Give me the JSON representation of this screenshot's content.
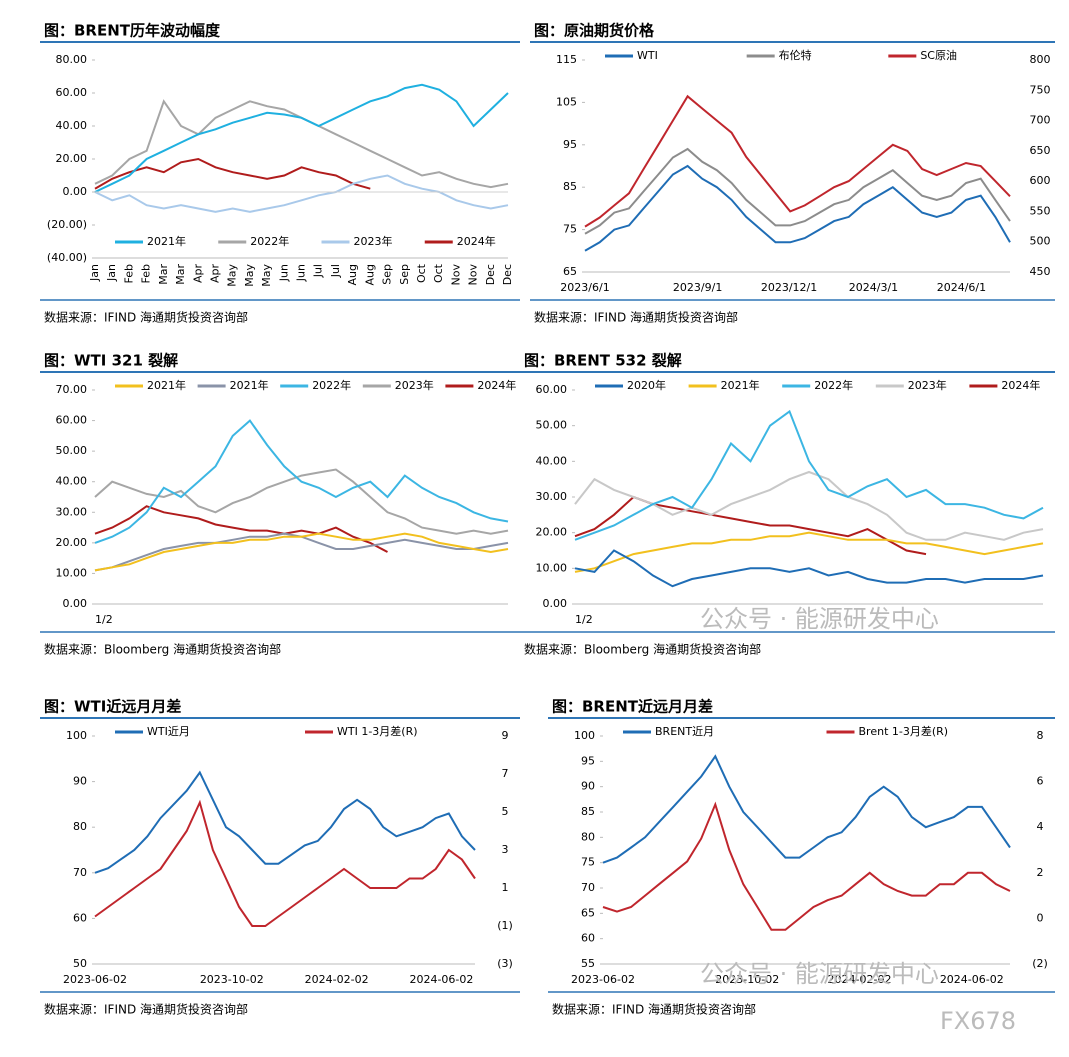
{
  "chart_data": [
    {
      "type": "line",
      "title": "图：BRENT历年波动幅度",
      "source": "数据来源：IFIND   海通期货投资咨询部",
      "legend": "bottom",
      "categories": [
        "Jan",
        "Jan",
        "Feb",
        "Feb",
        "Mar",
        "Mar",
        "Apr",
        "Apr",
        "May",
        "May",
        "May",
        "Jun",
        "Jun",
        "Jul",
        "Jul",
        "Aug",
        "Aug",
        "Sep",
        "Sep",
        "Oct",
        "Oct",
        "Nov",
        "Nov",
        "Dec",
        "Dec"
      ],
      "ylim": [
        -40,
        80
      ],
      "yticks": [
        {
          "value": -40,
          "label": "(40.00)"
        },
        {
          "value": -20,
          "label": "(20.00)"
        },
        {
          "value": 0,
          "label": "0.00"
        },
        {
          "value": 20,
          "label": "20.00"
        },
        {
          "value": 40,
          "label": "40.00"
        },
        {
          "value": 60,
          "label": "60.00"
        },
        {
          "value": 80,
          "label": "80.00"
        }
      ],
      "series": [
        {
          "name": "2021年",
          "color": "#1fb0e0",
          "values": [
            0,
            5,
            10,
            20,
            25,
            30,
            35,
            38,
            42,
            45,
            48,
            47,
            45,
            40,
            45,
            50,
            55,
            58,
            63,
            65,
            62,
            55,
            40,
            50,
            60
          ]
        },
        {
          "name": "2022年",
          "color": "#a6a6a6",
          "values": [
            5,
            10,
            20,
            25,
            55,
            40,
            35,
            45,
            50,
            55,
            52,
            50,
            45,
            40,
            35,
            30,
            25,
            20,
            15,
            10,
            12,
            8,
            5,
            3,
            5
          ]
        },
        {
          "name": "2023年",
          "color": "#a9c9ea",
          "values": [
            0,
            -5,
            -2,
            -8,
            -10,
            -8,
            -10,
            -12,
            -10,
            -12,
            -10,
            -8,
            -5,
            -2,
            0,
            5,
            8,
            10,
            5,
            2,
            0,
            -5,
            -8,
            -10,
            -8
          ]
        },
        {
          "name": "2024年",
          "color": "#b01c1c",
          "values": [
            2,
            8,
            12,
            15,
            12,
            18,
            20,
            15,
            12,
            10,
            8,
            10,
            15,
            12,
            10,
            5,
            2,
            null,
            null,
            null,
            null,
            null,
            null,
            null,
            null
          ]
        }
      ]
    },
    {
      "type": "line",
      "title": "图：原油期货价格",
      "source": "数据来源：IFIND   海通期货投资咨询部",
      "legend": "top",
      "categories": [
        "2023/6/1",
        null,
        null,
        null,
        null,
        null,
        "2023/9/1",
        null,
        null,
        null,
        null,
        null,
        "2023/12/1",
        null,
        null,
        null,
        null,
        null,
        "2024/3/1",
        null,
        null,
        null,
        null,
        null,
        "2024/6/1",
        null,
        null,
        null,
        null,
        null
      ],
      "ylim": [
        65,
        115
      ],
      "yticks": [
        65,
        75,
        85,
        95,
        105,
        115
      ],
      "y2lim": [
        450,
        800
      ],
      "y2ticks": [
        450,
        500,
        550,
        600,
        650,
        700,
        750,
        800
      ],
      "series": [
        {
          "name": "WTI",
          "color": "#1f6db5",
          "values": [
            70,
            72,
            75,
            76,
            80,
            84,
            88,
            90,
            87,
            85,
            82,
            78,
            75,
            72,
            72,
            73,
            75,
            77,
            78,
            81,
            83,
            85,
            82,
            79,
            78,
            79,
            82,
            83,
            78,
            72
          ]
        },
        {
          "name": "布伦特",
          "color": "#8c8c8c",
          "values": [
            74,
            76,
            79,
            80,
            84,
            88,
            92,
            94,
            91,
            89,
            86,
            82,
            79,
            76,
            76,
            77,
            79,
            81,
            82,
            85,
            87,
            89,
            86,
            83,
            82,
            83,
            86,
            87,
            82,
            77
          ]
        },
        {
          "name": "SC原油",
          "color": "#c0262d",
          "axis": "y2",
          "values": [
            525,
            540,
            560,
            580,
            620,
            660,
            700,
            740,
            720,
            700,
            680,
            640,
            610,
            580,
            550,
            560,
            575,
            590,
            600,
            620,
            640,
            660,
            650,
            620,
            610,
            620,
            630,
            625,
            600,
            575
          ]
        }
      ]
    },
    {
      "type": "line",
      "title": "图：WTI 321 裂解",
      "source": "数据来源：Bloomberg   海通期货投资咨询部",
      "legend": "top",
      "categories": [
        "1/2",
        null,
        null,
        null,
        null,
        null,
        null,
        null,
        null,
        null,
        null,
        null,
        null,
        null,
        null,
        null,
        null,
        null,
        null,
        null,
        null,
        null,
        null,
        null,
        null
      ],
      "ylim": [
        0,
        70
      ],
      "yticks": [
        {
          "value": 0,
          "label": "0.00"
        },
        {
          "value": 10,
          "label": "10.00"
        },
        {
          "value": 20,
          "label": "20.00"
        },
        {
          "value": 30,
          "label": "30.00"
        },
        {
          "value": 40,
          "label": "40.00"
        },
        {
          "value": 50,
          "label": "50.00"
        },
        {
          "value": 60,
          "label": "60.00"
        },
        {
          "value": 70,
          "label": "70.00"
        }
      ],
      "series": [
        {
          "name": "2021年",
          "color": "#f2c01e",
          "values": [
            11,
            12,
            13,
            15,
            17,
            18,
            19,
            20,
            20,
            21,
            21,
            22,
            22,
            23,
            22,
            21,
            21,
            22,
            23,
            22,
            20,
            19,
            18,
            17,
            18
          ]
        },
        {
          "name": "2021年",
          "color": "#8a93a8",
          "values": [
            11,
            12,
            14,
            16,
            18,
            19,
            20,
            20,
            21,
            22,
            22,
            23,
            22,
            20,
            18,
            18,
            19,
            20,
            21,
            20,
            19,
            18,
            18,
            19,
            20
          ]
        },
        {
          "name": "2022年",
          "color": "#3cb6e3",
          "values": [
            20,
            22,
            25,
            30,
            38,
            35,
            40,
            45,
            55,
            60,
            52,
            45,
            40,
            38,
            35,
            38,
            40,
            35,
            42,
            38,
            35,
            33,
            30,
            28,
            27
          ]
        },
        {
          "name": "2023年",
          "color": "#a6a6a6",
          "values": [
            35,
            40,
            38,
            36,
            35,
            37,
            32,
            30,
            33,
            35,
            38,
            40,
            42,
            43,
            44,
            40,
            35,
            30,
            28,
            25,
            24,
            23,
            24,
            23,
            24
          ]
        },
        {
          "name": "2024年",
          "color": "#b01c1c",
          "values": [
            23,
            25,
            28,
            32,
            30,
            29,
            28,
            26,
            25,
            24,
            24,
            23,
            24,
            23,
            25,
            22,
            20,
            17,
            null,
            null,
            null,
            null,
            null,
            null,
            null
          ]
        }
      ]
    },
    {
      "type": "line",
      "title": "图：BRENT 532 裂解",
      "source": "数据来源：Bloomberg   海通期货投资咨询部",
      "legend": "top",
      "categories": [
        "1/2",
        null,
        null,
        null,
        null,
        null,
        null,
        null,
        null,
        null,
        null,
        null,
        null,
        null,
        null,
        null,
        null,
        null,
        null,
        null,
        null,
        null,
        null,
        null,
        null
      ],
      "ylim": [
        0,
        60
      ],
      "yticks": [
        {
          "value": 0,
          "label": "0.00"
        },
        {
          "value": 10,
          "label": "10.00"
        },
        {
          "value": 20,
          "label": "20.00"
        },
        {
          "value": 30,
          "label": "30.00"
        },
        {
          "value": 40,
          "label": "40.00"
        },
        {
          "value": 50,
          "label": "50.00"
        },
        {
          "value": 60,
          "label": "60.00"
        }
      ],
      "series": [
        {
          "name": "2020年",
          "color": "#1f6db5",
          "values": [
            10,
            9,
            15,
            12,
            8,
            5,
            7,
            8,
            9,
            10,
            10,
            9,
            10,
            8,
            9,
            7,
            6,
            6,
            7,
            7,
            6,
            7,
            7,
            7,
            8
          ]
        },
        {
          "name": "2021年",
          "color": "#f2c01e",
          "values": [
            9,
            10,
            12,
            14,
            15,
            16,
            17,
            17,
            18,
            18,
            19,
            19,
            20,
            19,
            18,
            18,
            18,
            17,
            17,
            16,
            15,
            14,
            15,
            16,
            17
          ]
        },
        {
          "name": "2022年",
          "color": "#3cb6e3",
          "values": [
            18,
            20,
            22,
            25,
            28,
            30,
            27,
            35,
            45,
            40,
            50,
            54,
            40,
            32,
            30,
            33,
            35,
            30,
            32,
            28,
            28,
            27,
            25,
            24,
            27
          ]
        },
        {
          "name": "2023年",
          "color": "#c8c8c8",
          "values": [
            28,
            35,
            32,
            30,
            28,
            25,
            27,
            25,
            28,
            30,
            32,
            35,
            37,
            35,
            30,
            28,
            25,
            20,
            18,
            18,
            20,
            19,
            18,
            20,
            21
          ]
        },
        {
          "name": "2024年",
          "color": "#b01c1c",
          "values": [
            19,
            21,
            25,
            30,
            28,
            27,
            26,
            25,
            24,
            23,
            22,
            22,
            21,
            20,
            19,
            21,
            18,
            15,
            14,
            null,
            null,
            null,
            null,
            null,
            null
          ]
        }
      ]
    },
    {
      "type": "line",
      "title": "图：WTI近远月月差",
      "source": "数据来源：IFIND   海通期货投资咨询部",
      "legend": "top",
      "categories": [
        "2023-06-02",
        null,
        null,
        null,
        null,
        null,
        null,
        null,
        "2023-10-02",
        null,
        null,
        null,
        null,
        null,
        null,
        null,
        "2024-02-02",
        null,
        null,
        null,
        null,
        null,
        null,
        null,
        "2024-06-02",
        null,
        null,
        null,
        null,
        null
      ],
      "ylim": [
        50,
        100
      ],
      "yticks": [
        50,
        60,
        70,
        80,
        90,
        100
      ],
      "y2lim": [
        -3,
        9
      ],
      "y2ticks": [
        {
          "value": -3,
          "label": "(3)"
        },
        {
          "value": -1,
          "label": "(1)"
        },
        1,
        3,
        5,
        7,
        9
      ],
      "series": [
        {
          "name": "WTI近月",
          "color": "#1f6db5",
          "values": [
            70,
            71,
            73,
            75,
            78,
            82,
            85,
            88,
            92,
            86,
            80,
            78,
            75,
            72,
            72,
            74,
            76,
            77,
            80,
            84,
            86,
            84,
            80,
            78,
            79,
            80,
            82,
            83,
            78,
            75
          ]
        },
        {
          "name": "WTI 1-3月差(R)",
          "color": "#c0262d",
          "axis": "y2",
          "values": [
            -0.5,
            0,
            0.5,
            1,
            1.5,
            2,
            3,
            4,
            5.5,
            3,
            1.5,
            0,
            -1,
            -1,
            -0.5,
            0,
            0.5,
            1,
            1.5,
            2,
            1.5,
            1,
            1,
            1,
            1.5,
            1.5,
            2,
            3,
            2.5,
            1.5
          ]
        }
      ]
    },
    {
      "type": "line",
      "title": "图：BRENT近远月月差",
      "source": "数据来源：IFIND   海通期货投资咨询部",
      "legend": "top",
      "categories": [
        "2023-06-02",
        null,
        null,
        null,
        null,
        null,
        null,
        null,
        "2023-10-02",
        null,
        null,
        null,
        null,
        null,
        null,
        null,
        "2024-02-02",
        null,
        null,
        null,
        null,
        null,
        null,
        null,
        "2024-06-02",
        null,
        null,
        null,
        null,
        null
      ],
      "ylim": [
        55,
        100
      ],
      "yticks": [
        55,
        60,
        65,
        70,
        75,
        80,
        85,
        90,
        95,
        100
      ],
      "y2lim": [
        -2,
        8
      ],
      "y2ticks": [
        {
          "value": -2,
          "label": "(2)"
        },
        0,
        2,
        4,
        6,
        8
      ],
      "series": [
        {
          "name": "BRENT近月",
          "color": "#1f6db5",
          "values": [
            75,
            76,
            78,
            80,
            83,
            86,
            89,
            92,
            96,
            90,
            85,
            82,
            79,
            76,
            76,
            78,
            80,
            81,
            84,
            88,
            90,
            88,
            84,
            82,
            83,
            84,
            86,
            86,
            82,
            78
          ]
        },
        {
          "name": "Brent 1-3月差(R)",
          "color": "#c0262d",
          "axis": "y2",
          "values": [
            0.5,
            0.3,
            0.5,
            1,
            1.5,
            2,
            2.5,
            3.5,
            5,
            3,
            1.5,
            0.5,
            -0.5,
            -0.5,
            0,
            0.5,
            0.8,
            1,
            1.5,
            2,
            1.5,
            1.2,
            1,
            1,
            1.5,
            1.5,
            2,
            2,
            1.5,
            1.2
          ]
        }
      ]
    }
  ],
  "watermarks": [
    "公众号 · 能源研发中心",
    "公众号 · 能源研发中心",
    "FX678"
  ]
}
